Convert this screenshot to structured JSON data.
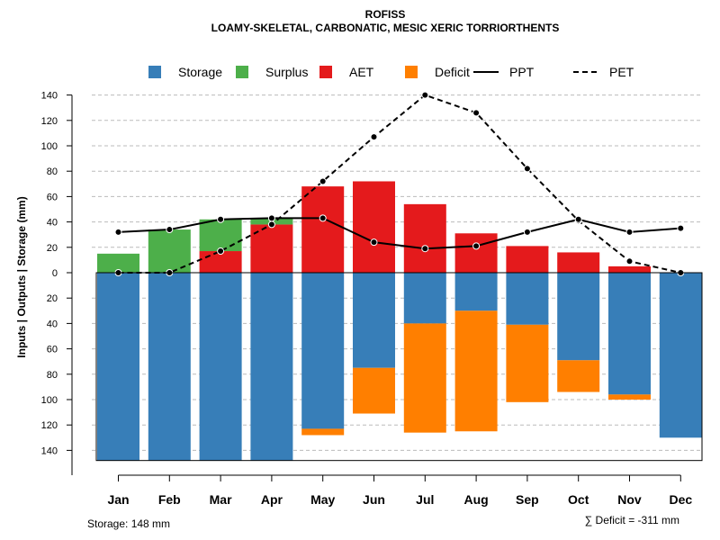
{
  "chart_data": {
    "type": "bar",
    "title": "ROFISS",
    "subtitle": "LOAMY-SKELETAL, CARBONATIC, MESIC XERIC TORRIORTHENTS",
    "ylabel": "Inputs | Outputs | Storage    (mm)",
    "ylim": [
      -148,
      145
    ],
    "yticks": [
      -140,
      -120,
      -100,
      -80,
      -60,
      -40,
      -20,
      0,
      20,
      40,
      60,
      80,
      100,
      120,
      140
    ],
    "ytick_labels": [
      "140",
      "120",
      "100",
      "80",
      "60",
      "40",
      "20",
      "0",
      "20",
      "40",
      "60",
      "80",
      "100",
      "120",
      "140"
    ],
    "categories": [
      "Jan",
      "Feb",
      "Mar",
      "Apr",
      "May",
      "Jun",
      "Jul",
      "Aug",
      "Sep",
      "Oct",
      "Nov",
      "Dec"
    ],
    "legend": [
      {
        "name": "Storage",
        "kind": "box",
        "color": "#377EB8"
      },
      {
        "name": "Surplus",
        "kind": "box",
        "color": "#4DAF4A"
      },
      {
        "name": "AET",
        "kind": "box",
        "color": "#E41A1C"
      },
      {
        "name": "Deficit",
        "kind": "box",
        "color": "#FF7F00"
      },
      {
        "name": "PPT",
        "kind": "solid",
        "color": "#000000"
      },
      {
        "name": "PET",
        "kind": "dashed",
        "color": "#000000"
      }
    ],
    "colors": {
      "storage": "#377EB8",
      "surplus": "#4DAF4A",
      "aet": "#E41A1C",
      "deficit": "#FF7F00",
      "grid": "#bbbbbb"
    },
    "series": [
      {
        "name": "AET",
        "values": [
          0,
          0,
          17,
          38,
          68,
          72,
          54,
          31,
          21,
          16,
          5,
          0
        ]
      },
      {
        "name": "Surplus",
        "values": [
          15,
          34,
          25,
          5,
          0,
          0,
          0,
          0,
          0,
          0,
          0,
          0
        ]
      },
      {
        "name": "Storage",
        "values": [
          148,
          148,
          148,
          148,
          123,
          75,
          40,
          30,
          41,
          69,
          96,
          130
        ]
      },
      {
        "name": "Deficit",
        "values": [
          0,
          0,
          0,
          0,
          5,
          36,
          86,
          95,
          61,
          25,
          4,
          0
        ]
      },
      {
        "name": "PPT",
        "values": [
          32,
          34,
          42,
          43,
          43,
          24,
          19,
          21,
          32,
          42,
          32,
          35
        ]
      },
      {
        "name": "PET",
        "values": [
          0,
          0,
          17,
          38,
          72,
          107,
          140,
          126,
          82,
          41,
          9,
          0
        ]
      }
    ],
    "footer_left": "Storage: 148 mm",
    "footer_right": "∑ Deficit = -311 mm"
  }
}
